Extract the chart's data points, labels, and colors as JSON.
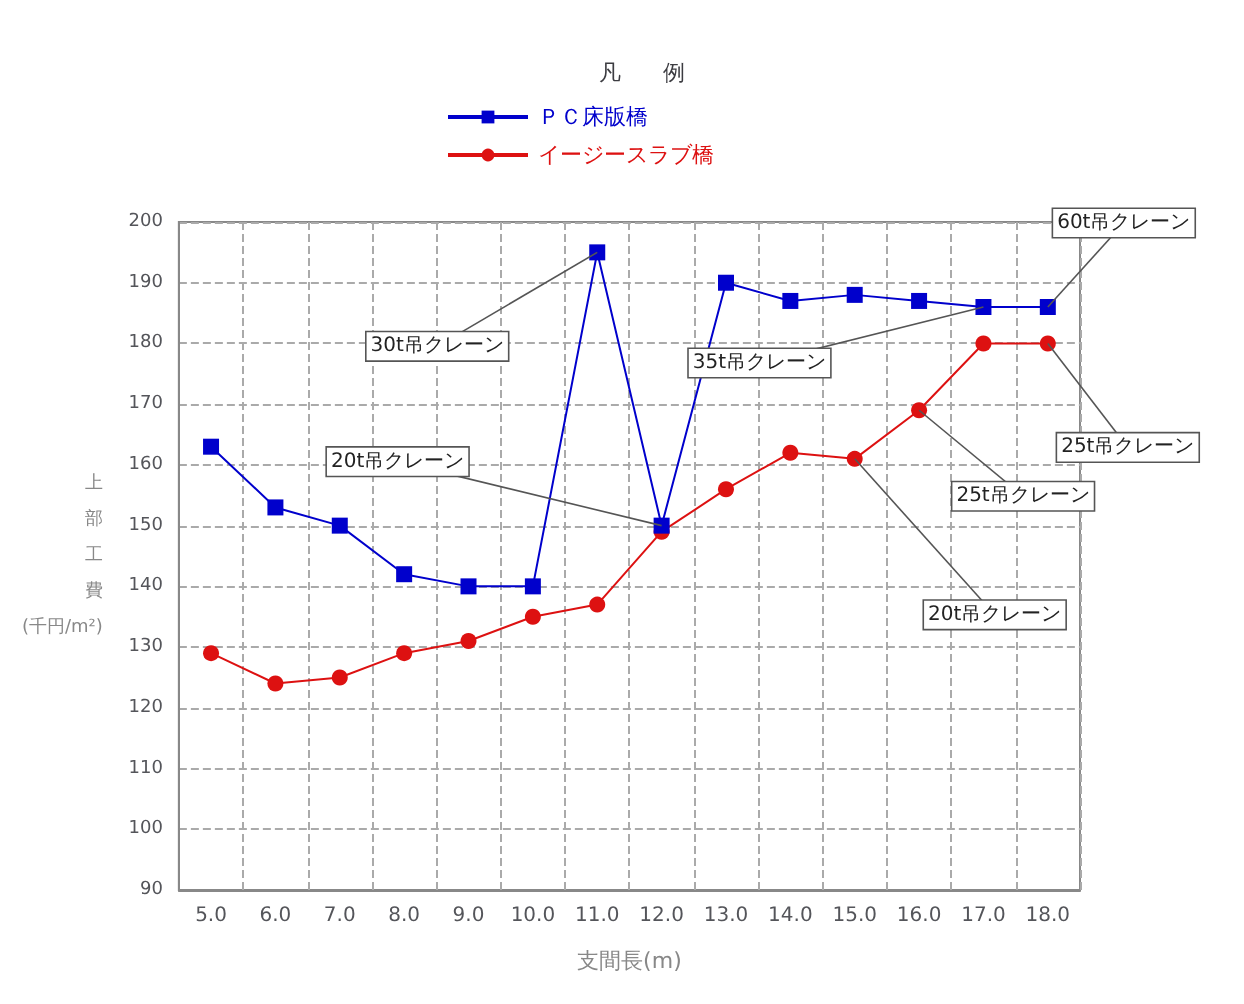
{
  "chart_data": {
    "type": "line",
    "categories": [
      "5.0",
      "6.0",
      "7.0",
      "8.0",
      "9.0",
      "10.0",
      "11.0",
      "12.0",
      "13.0",
      "14.0",
      "15.0",
      "16.0",
      "17.0",
      "18.0"
    ],
    "series": [
      {
        "name": "ＰＣ床版橋",
        "color": "#0000cc",
        "marker": "square",
        "values": [
          163,
          153,
          150,
          142,
          140,
          140,
          195,
          150,
          190,
          187,
          188,
          187,
          186,
          186
        ]
      },
      {
        "name": "イージースラブ橋",
        "color": "#dd1111",
        "marker": "circle",
        "values": [
          129,
          124,
          125,
          129,
          131,
          135,
          137,
          149,
          156,
          162,
          161,
          169,
          180,
          180
        ]
      }
    ],
    "xlabel": "支間長(m)",
    "ylabel": "上部工費(千円/m²)",
    "legend_title": "凡例",
    "legend": "top",
    "ylim": [
      90,
      200
    ],
    "yticks": [
      90,
      100,
      110,
      120,
      130,
      140,
      150,
      160,
      170,
      180,
      190,
      200
    ],
    "grid": true,
    "line_style": "solid",
    "annotations": [
      {
        "text": "30t吊クレーン",
        "x": "11.0",
        "y": 195
      },
      {
        "text": "20t吊クレーン",
        "x": "12.0",
        "y": 150
      },
      {
        "text": "35t吊クレーン",
        "x": "17.0",
        "y": 186
      },
      {
        "text": "60t吊クレーン",
        "x": "18.0",
        "y": 186
      },
      {
        "text": "25t吊クレーン",
        "x": "18.0",
        "y": 180
      },
      {
        "text": "25t吊クレーン",
        "x": "16.0",
        "y": 169
      },
      {
        "text": "20t吊クレーン",
        "x": "15.0",
        "y": 161
      }
    ]
  }
}
